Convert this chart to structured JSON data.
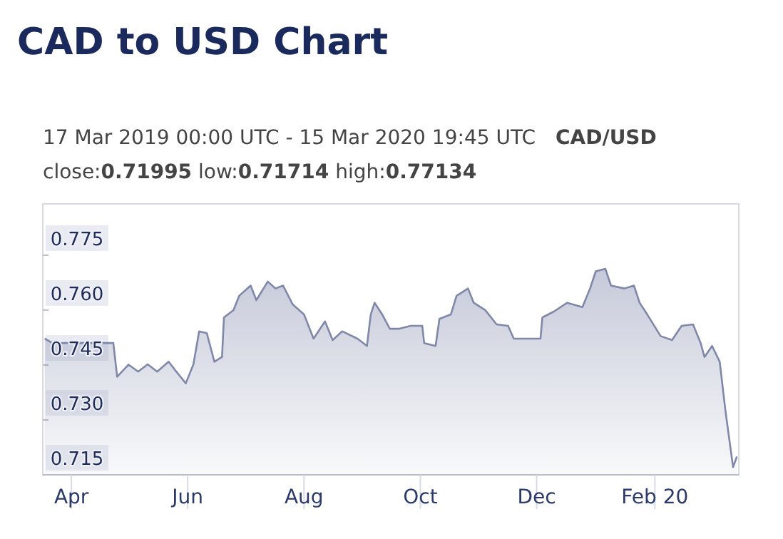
{
  "chart_data": {
    "type": "area",
    "title": "CAD to USD Chart",
    "subtitle": "17 Mar 2019 00:00 UTC - 15 Mar 2020 19:45 UTC",
    "annotations": [
      "CAD/USD",
      "close:0.71995 low:0.71714 high:0.77134"
    ],
    "x": [
      "2019-03-18",
      "2019-03-22",
      "2019-04-23",
      "2019-04-25",
      "2019-05-01",
      "2019-05-06",
      "2019-05-11",
      "2019-05-16",
      "2019-05-22",
      "2019-05-26",
      "2019-05-31",
      "2019-06-04",
      "2019-06-07",
      "2019-06-11",
      "2019-06-15",
      "2019-06-19",
      "2019-06-20",
      "2019-06-25",
      "2019-06-28",
      "2019-07-04",
      "2019-07-07",
      "2019-07-13",
      "2019-07-17",
      "2019-07-21",
      "2019-07-26",
      "2019-08-01",
      "2019-08-06",
      "2019-08-12",
      "2019-08-16",
      "2019-08-21",
      "2019-08-29",
      "2019-09-03",
      "2019-09-05",
      "2019-09-07",
      "2019-09-11",
      "2019-09-15",
      "2019-09-20",
      "2019-09-26",
      "2019-10-02",
      "2019-10-03",
      "2019-10-09",
      "2019-10-11",
      "2019-10-17",
      "2019-10-20",
      "2019-10-26",
      "2019-10-29",
      "2019-11-04",
      "2019-11-10",
      "2019-11-16",
      "2019-11-19",
      "2019-11-25",
      "2019-12-03",
      "2019-12-04",
      "2019-12-10",
      "2019-12-17",
      "2019-12-25",
      "2019-12-29",
      "2020-01-01",
      "2020-01-06",
      "2020-01-09",
      "2020-01-16",
      "2020-01-21",
      "2020-01-24",
      "2020-01-28",
      "2020-02-04",
      "2020-02-10",
      "2020-02-15",
      "2020-02-21",
      "2020-02-25",
      "2020-02-27",
      "2020-03-02",
      "2020-03-06",
      "2020-03-09",
      "2020-03-13",
      "2020-03-15"
    ],
    "series": [
      {
        "color": "#8088aa",
        "values": [
          0.7522,
          0.751,
          0.751,
          0.7418,
          0.7451,
          0.7432,
          0.7452,
          0.7432,
          0.7459,
          0.7432,
          0.74,
          0.7452,
          0.7542,
          0.7537,
          0.7459,
          0.7472,
          0.758,
          0.76,
          0.7639,
          0.7667,
          0.7627,
          0.7678,
          0.7659,
          0.7667,
          0.7616,
          0.7588,
          0.7522,
          0.7569,
          0.7518,
          0.7542,
          0.7522,
          0.7502,
          0.7588,
          0.762,
          0.7588,
          0.7549,
          0.7549,
          0.7557,
          0.7557,
          0.751,
          0.7502,
          0.7576,
          0.7588,
          0.7639,
          0.7659,
          0.762,
          0.76,
          0.7561,
          0.7557,
          0.7522,
          0.7522,
          0.7522,
          0.758,
          0.7596,
          0.762,
          0.7608,
          0.7659,
          0.7706,
          0.7713,
          0.7667,
          0.7659,
          0.7667,
          0.762,
          0.7588,
          0.7529,
          0.7518,
          0.7557,
          0.7561,
          0.751,
          0.7472,
          0.7502,
          0.7459,
          0.7325,
          0.7171,
          0.72
        ]
      }
    ],
    "xlim": [
      "2019-03-17",
      "2020-03-16"
    ],
    "xticks": [
      {
        "value": "2019-04-01",
        "label": "Apr"
      },
      {
        "value": "2019-06-01",
        "label": "Jun"
      },
      {
        "value": "2019-08-01",
        "label": "Aug"
      },
      {
        "value": "2019-10-01",
        "label": "Oct"
      },
      {
        "value": "2019-12-01",
        "label": "Dec"
      },
      {
        "value": "2020-02-01",
        "label": "Feb 20"
      }
    ],
    "ylim": [
      0.715,
      0.789
    ],
    "yticks": [
      0.715,
      {
        "value": 0.73,
        "label": "0.730"
      },
      0.745,
      {
        "value": 0.76,
        "label": "0.760"
      },
      0.775
    ]
  }
}
